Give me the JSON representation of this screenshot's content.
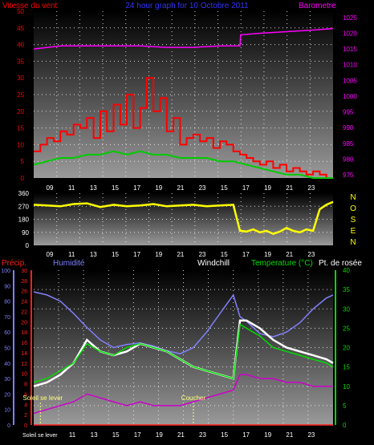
{
  "title": "24 hour graph for  10 Octobre 2011",
  "colors": {
    "wind": "#ff0000",
    "gust": "#00cc00",
    "barometer": "#ff00ff",
    "direction": "#ffff00",
    "humidity": "#8080ff",
    "windchill": "#ffffff",
    "temperature": "#00dd00",
    "dewpoint": "#cc00cc",
    "precip": "#ff2020",
    "sunline": "#ffff80",
    "axisLabel": "#ffffff"
  },
  "chart_data": [
    {
      "type": "line",
      "title": "24 hour graph for  10 Octobre 2011",
      "left_axis_label": "Vitesse du vent",
      "right_axis_label": "Barometre",
      "x_ticks": [
        "09",
        "11",
        "13",
        "15",
        "17",
        "19",
        "21",
        "23",
        "15",
        "17",
        "19",
        "21",
        "23"
      ],
      "left_ticks": [
        "0",
        "5",
        "10",
        "15",
        "20",
        "25",
        "30",
        "35",
        "40",
        "45",
        "50"
      ],
      "right_ticks": [
        "975",
        "980",
        "985",
        "990",
        "995",
        "1000",
        "1005",
        "1010",
        "1015",
        "1020",
        "1025"
      ],
      "ylim_left": [
        0,
        50
      ],
      "ylim_right": [
        974,
        1027
      ],
      "series": [
        {
          "name": "Vitesse du vent",
          "axis": "left",
          "x": [
            0,
            1,
            2,
            3,
            4,
            5,
            6,
            7,
            8,
            9,
            10,
            11,
            12,
            13,
            14,
            15,
            16,
            17,
            18,
            19,
            20,
            21,
            22,
            23,
            24,
            25,
            26,
            27,
            28,
            29,
            30,
            31,
            32,
            33,
            34,
            35,
            36,
            37,
            38,
            39,
            40,
            41,
            42,
            43,
            44,
            45
          ],
          "y": [
            8,
            10,
            12,
            11,
            14,
            13,
            16,
            15,
            18,
            12,
            20,
            14,
            22,
            16,
            25,
            15,
            21,
            30,
            20,
            24,
            14,
            18,
            10,
            12,
            13,
            11,
            12,
            9,
            11,
            10,
            8,
            7,
            6,
            5,
            4,
            5,
            3,
            4,
            2,
            3,
            2,
            1,
            2,
            1,
            0,
            0
          ]
        },
        {
          "name": "Rafales",
          "axis": "left",
          "x": [
            0,
            2,
            4,
            6,
            8,
            10,
            12,
            14,
            16,
            18,
            20,
            22,
            24,
            26,
            28,
            30,
            32,
            34,
            36,
            38,
            40,
            42,
            44,
            45
          ],
          "y": [
            4,
            5,
            6,
            6,
            7,
            7,
            8,
            7,
            8,
            7,
            7,
            6,
            6,
            6,
            5,
            5,
            4,
            3,
            2,
            1,
            1,
            0,
            0,
            0
          ]
        },
        {
          "name": "Barometre",
          "axis": "right",
          "x": [
            0,
            4,
            8,
            12,
            16,
            20,
            24,
            28,
            31,
            31.1,
            34,
            38,
            42,
            45
          ],
          "y": [
            1015,
            1016,
            1016,
            1016,
            1016,
            1015.5,
            1015.5,
            1016,
            1016,
            1019.5,
            1020,
            1020.5,
            1021,
            1021.5
          ]
        }
      ]
    },
    {
      "type": "scatter",
      "right_axis_label": "NOSEN",
      "x_ticks": [
        "09",
        "11",
        "13",
        "15",
        "17",
        "19",
        "21",
        "23",
        "15",
        "17",
        "19",
        "21",
        "23"
      ],
      "left_ticks": [
        "0",
        "90",
        "180",
        "270",
        "360"
      ],
      "compass": [
        "N",
        "O",
        "S",
        "E",
        "N"
      ],
      "ylim": [
        0,
        360
      ],
      "series": [
        {
          "name": "Direction",
          "x": [
            0,
            2,
            4,
            6,
            8,
            10,
            12,
            14,
            16,
            18,
            20,
            22,
            24,
            26,
            28,
            30,
            31,
            32,
            33,
            34,
            35,
            36,
            37,
            38,
            39,
            40,
            41,
            42,
            43,
            44,
            45
          ],
          "y": [
            280,
            275,
            270,
            285,
            290,
            265,
            280,
            270,
            275,
            285,
            270,
            275,
            280,
            270,
            275,
            280,
            100,
            95,
            110,
            90,
            100,
            80,
            95,
            120,
            100,
            90,
            110,
            100,
            250,
            280,
            300
          ]
        }
      ]
    },
    {
      "type": "line",
      "labels": {
        "precip": "Précip.",
        "humidity": "Humidité",
        "windchill": "Windchill",
        "temperature": "Temperature (°C)",
        "dewpoint": "Pt. de rosée"
      },
      "x_ticks": [
        "11",
        "13",
        "15",
        "17",
        "19",
        "21",
        "23",
        "15",
        "17",
        "19",
        "21",
        "23"
      ],
      "first_x_label": "Soleil se lever",
      "precip_ticks": [
        "0",
        "10",
        "20",
        "30",
        "40",
        "50",
        "60",
        "70",
        "80",
        "90",
        "100"
      ],
      "humidity_ticks": [
        "0",
        "2",
        "4",
        "6",
        "8",
        "10",
        "12",
        "14",
        "16",
        "18",
        "20",
        "22",
        "24",
        "26",
        "28",
        "30"
      ],
      "temp_ticks": [
        "0",
        "5",
        "10",
        "15",
        "20",
        "25",
        "30",
        "35",
        "40"
      ],
      "ylim_temp": [
        0,
        40
      ],
      "ylim_humidity": [
        0,
        100
      ],
      "annotations": {
        "sunrise": "Soleil se lever",
        "sunset": "Coucher"
      },
      "sunrise_x": 1,
      "sunset_x": 24,
      "series": [
        {
          "name": "Humidité",
          "axis": "humidity",
          "x": [
            0,
            2,
            4,
            6,
            8,
            10,
            12,
            14,
            16,
            18,
            20,
            22,
            24,
            26,
            28,
            30,
            31,
            32,
            34,
            36,
            38,
            40,
            42,
            44,
            45
          ],
          "y": [
            86,
            84,
            80,
            72,
            63,
            55,
            50,
            52,
            53,
            51,
            48,
            46,
            50,
            60,
            72,
            84,
            70,
            67,
            59,
            57,
            60,
            66,
            75,
            82,
            84
          ]
        },
        {
          "name": "Windchill",
          "axis": "temp",
          "x": [
            0,
            2,
            4,
            6,
            8,
            10,
            12,
            14,
            16,
            18,
            20,
            22,
            24,
            26,
            28,
            30,
            31,
            32,
            34,
            36,
            38,
            40,
            42,
            44,
            45
          ],
          "y": [
            10,
            11,
            13,
            16,
            22,
            19,
            18,
            19,
            21,
            20,
            19,
            17,
            15,
            14,
            13,
            12,
            27,
            27,
            25,
            22,
            20,
            19,
            18,
            17,
            16
          ]
        },
        {
          "name": "Temperature (°C)",
          "axis": "temp",
          "x": [
            0,
            2,
            4,
            6,
            8,
            10,
            12,
            14,
            16,
            18,
            20,
            22,
            24,
            26,
            28,
            30,
            31,
            32,
            34,
            36,
            38,
            40,
            42,
            44,
            45
          ],
          "y": [
            11,
            12,
            14,
            16,
            21,
            19,
            18,
            20,
            21,
            20,
            19,
            17,
            15,
            14,
            13,
            12,
            26,
            25,
            23,
            20,
            19,
            18,
            17,
            16,
            15
          ]
        },
        {
          "name": "Pt. de rosée",
          "axis": "temp",
          "x": [
            0,
            2,
            4,
            6,
            8,
            10,
            12,
            14,
            16,
            18,
            20,
            22,
            24,
            26,
            28,
            30,
            31,
            32,
            34,
            36,
            38,
            40,
            42,
            44,
            45
          ],
          "y": [
            3,
            4,
            5,
            6,
            8,
            7,
            6,
            5,
            6,
            5,
            5,
            5,
            6,
            7,
            8,
            9,
            13,
            13,
            12,
            12,
            11,
            11,
            10,
            10,
            10
          ]
        },
        {
          "name": "Précip.",
          "axis": "precip",
          "x": [
            0,
            45
          ],
          "y": [
            0,
            0
          ]
        }
      ]
    }
  ]
}
